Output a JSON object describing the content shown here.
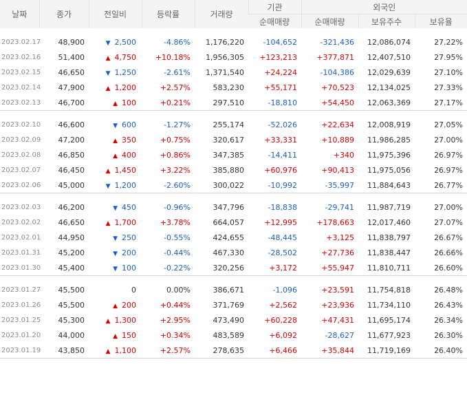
{
  "headers": {
    "date": "날짜",
    "close": "종가",
    "change": "전일비",
    "rate": "등락률",
    "volume": "거래량",
    "inst": "기관",
    "foreign": "외국인",
    "inst_net": "순매매량",
    "foreign_net": "순매매량",
    "foreign_hold": "보유주수",
    "foreign_ratio": "보유율"
  },
  "groups": [
    [
      {
        "date": "2023.02.17",
        "close": "48,900",
        "dir": "down",
        "change": "2,500",
        "rate": "-4.86%",
        "volume": "1,176,220",
        "inst": "-104,652",
        "foreign": "-321,436",
        "hold": "12,086,074",
        "ratio": "27.22%"
      },
      {
        "date": "2023.02.16",
        "close": "51,400",
        "dir": "up",
        "change": "4,750",
        "rate": "+10.18%",
        "volume": "1,956,305",
        "inst": "+123,213",
        "foreign": "+377,871",
        "hold": "12,407,510",
        "ratio": "27.95%"
      },
      {
        "date": "2023.02.15",
        "close": "46,650",
        "dir": "down",
        "change": "1,250",
        "rate": "-2.61%",
        "volume": "1,371,540",
        "inst": "+24,224",
        "foreign": "-104,386",
        "hold": "12,029,639",
        "ratio": "27.10%"
      },
      {
        "date": "2023.02.14",
        "close": "47,900",
        "dir": "up",
        "change": "1,200",
        "rate": "+2.57%",
        "volume": "583,230",
        "inst": "+55,171",
        "foreign": "+70,523",
        "hold": "12,134,025",
        "ratio": "27.33%"
      },
      {
        "date": "2023.02.13",
        "close": "46,700",
        "dir": "up",
        "change": "100",
        "rate": "+0.21%",
        "volume": "297,510",
        "inst": "-18,810",
        "foreign": "+54,450",
        "hold": "12,063,369",
        "ratio": "27.17%"
      }
    ],
    [
      {
        "date": "2023.02.10",
        "close": "46,600",
        "dir": "down",
        "change": "600",
        "rate": "-1.27%",
        "volume": "255,174",
        "inst": "-52,026",
        "foreign": "+22,634",
        "hold": "12,008,919",
        "ratio": "27.05%"
      },
      {
        "date": "2023.02.09",
        "close": "47,200",
        "dir": "up",
        "change": "350",
        "rate": "+0.75%",
        "volume": "320,617",
        "inst": "+33,331",
        "foreign": "+10,889",
        "hold": "11,986,285",
        "ratio": "27.00%"
      },
      {
        "date": "2023.02.08",
        "close": "46,850",
        "dir": "up",
        "change": "400",
        "rate": "+0.86%",
        "volume": "347,385",
        "inst": "-14,411",
        "foreign": "+340",
        "hold": "11,975,396",
        "ratio": "26.97%"
      },
      {
        "date": "2023.02.07",
        "close": "46,450",
        "dir": "up",
        "change": "1,450",
        "rate": "+3.22%",
        "volume": "385,880",
        "inst": "+60,976",
        "foreign": "+90,413",
        "hold": "11,975,056",
        "ratio": "26.97%"
      },
      {
        "date": "2023.02.06",
        "close": "45,000",
        "dir": "down",
        "change": "1,200",
        "rate": "-2.60%",
        "volume": "300,022",
        "inst": "-10,992",
        "foreign": "-35,997",
        "hold": "11,884,643",
        "ratio": "26.77%"
      }
    ],
    [
      {
        "date": "2023.02.03",
        "close": "46,200",
        "dir": "down",
        "change": "450",
        "rate": "-0.96%",
        "volume": "347,796",
        "inst": "-18,838",
        "foreign": "-29,741",
        "hold": "11,987,719",
        "ratio": "27.00%"
      },
      {
        "date": "2023.02.02",
        "close": "46,650",
        "dir": "up",
        "change": "1,700",
        "rate": "+3.78%",
        "volume": "664,057",
        "inst": "+12,995",
        "foreign": "+178,663",
        "hold": "12,017,460",
        "ratio": "27.07%"
      },
      {
        "date": "2023.02.01",
        "close": "44,950",
        "dir": "down",
        "change": "250",
        "rate": "-0.55%",
        "volume": "424,655",
        "inst": "-48,445",
        "foreign": "+3,125",
        "hold": "11,838,797",
        "ratio": "26.67%"
      },
      {
        "date": "2023.01.31",
        "close": "45,200",
        "dir": "down",
        "change": "200",
        "rate": "-0.44%",
        "volume": "467,330",
        "inst": "-28,502",
        "foreign": "+27,736",
        "hold": "11,838,447",
        "ratio": "26.66%"
      },
      {
        "date": "2023.01.30",
        "close": "45,400",
        "dir": "down",
        "change": "100",
        "rate": "-0.22%",
        "volume": "320,256",
        "inst": "+3,172",
        "foreign": "+55,947",
        "hold": "11,810,711",
        "ratio": "26.60%"
      }
    ],
    [
      {
        "date": "2023.01.27",
        "close": "45,500",
        "dir": "zero",
        "change": "0",
        "rate": "0.00%",
        "volume": "386,671",
        "inst": "-1,096",
        "foreign": "+23,591",
        "hold": "11,754,818",
        "ratio": "26.48%"
      },
      {
        "date": "2023.01.26",
        "close": "45,500",
        "dir": "up",
        "change": "200",
        "rate": "+0.44%",
        "volume": "371,769",
        "inst": "+2,562",
        "foreign": "+23,936",
        "hold": "11,734,110",
        "ratio": "26.43%"
      },
      {
        "date": "2023.01.25",
        "close": "45,300",
        "dir": "up",
        "change": "1,300",
        "rate": "+2.95%",
        "volume": "473,490",
        "inst": "+60,228",
        "foreign": "+47,431",
        "hold": "11,695,174",
        "ratio": "26.34%"
      },
      {
        "date": "2023.01.20",
        "close": "44,000",
        "dir": "up",
        "change": "150",
        "rate": "+0.34%",
        "volume": "483,589",
        "inst": "+6,092",
        "foreign": "-28,627",
        "hold": "11,677,923",
        "ratio": "26.30%"
      },
      {
        "date": "2023.01.19",
        "close": "43,850",
        "dir": "up",
        "change": "1,100",
        "rate": "+2.57%",
        "volume": "278,635",
        "inst": "+6,466",
        "foreign": "+35,844",
        "hold": "11,719,169",
        "ratio": "26.40%"
      }
    ]
  ],
  "icons": {
    "up": "triangle-up-icon",
    "down": "triangle-down-icon"
  },
  "colors": {
    "up": "#d60000",
    "down": "#1a5fc7"
  }
}
